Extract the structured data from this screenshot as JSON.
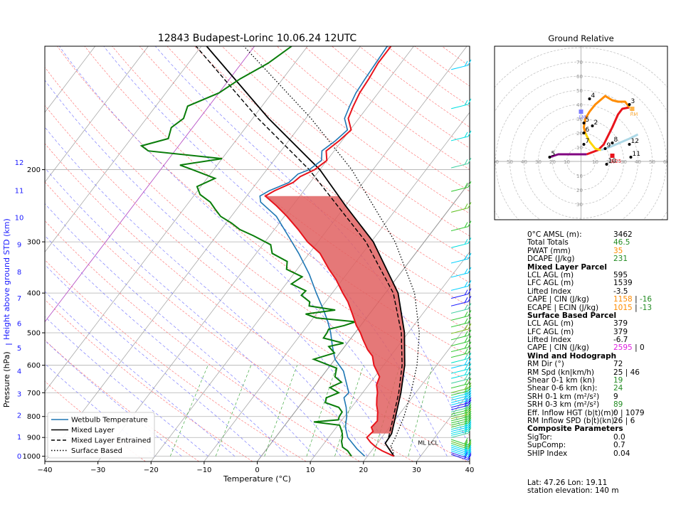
{
  "title": "12843 Budapest-Lorinc 10.06.24 12UTC",
  "chart_data": {
    "type": "skewt",
    "title": "12843 Budapest-Lorinc 10.06.24 12UTC",
    "xlabel": "Temperature (°C)",
    "ylabel": "Pressure (hPa)",
    "y2label": "Height above ground STD (km)",
    "xlim": [
      -40,
      40
    ],
    "ylim_hpa": [
      1030,
      100
    ],
    "x_ticks": [
      "−40",
      "−30",
      "−20",
      "−10",
      "0",
      "10",
      "20",
      "30",
      "40"
    ],
    "p_ticks": [
      {
        "p": 1000,
        "label": "1000"
      },
      {
        "p": 900,
        "label": "900"
      },
      {
        "p": 800,
        "label": "800"
      },
      {
        "p": 700,
        "label": "700"
      },
      {
        "p": 600,
        "label": "600"
      },
      {
        "p": 500,
        "label": "500"
      },
      {
        "p": 400,
        "label": "400"
      },
      {
        "p": 300,
        "label": "300"
      },
      {
        "p": 200,
        "label": "200"
      }
    ],
    "km_ticks": [
      {
        "p": 1000,
        "label": "0"
      },
      {
        "p": 898,
        "label": "1"
      },
      {
        "p": 795,
        "label": "2"
      },
      {
        "p": 705,
        "label": "3"
      },
      {
        "p": 620,
        "label": "4"
      },
      {
        "p": 545,
        "label": "5"
      },
      {
        "p": 475,
        "label": "6"
      },
      {
        "p": 412,
        "label": "7"
      },
      {
        "p": 355,
        "label": "8"
      },
      {
        "p": 305,
        "label": "9"
      },
      {
        "p": 262,
        "label": "10"
      },
      {
        "p": 225,
        "label": "11"
      },
      {
        "p": 192,
        "label": "12"
      }
    ],
    "temperature": [
      [
        1000,
        25
      ],
      [
        990,
        24
      ],
      [
        970,
        22
      ],
      [
        950,
        20.3
      ],
      [
        925,
        18.6
      ],
      [
        900,
        17.2
      ],
      [
        870,
        17.5
      ],
      [
        850,
        16.6
      ],
      [
        820,
        16.8
      ],
      [
        800,
        16.2
      ],
      [
        780,
        15.6
      ],
      [
        750,
        14.4
      ],
      [
        720,
        13.4
      ],
      [
        700,
        12.8
      ],
      [
        670,
        11.5
      ],
      [
        640,
        10.9
      ],
      [
        600,
        8.2
      ],
      [
        570,
        6.6
      ],
      [
        550,
        4.8
      ],
      [
        520,
        2.5
      ],
      [
        500,
        1
      ],
      [
        480,
        -0.8
      ],
      [
        450,
        -3.2
      ],
      [
        420,
        -5.8
      ],
      [
        400,
        -8
      ],
      [
        370,
        -11.3
      ],
      [
        350,
        -14
      ],
      [
        320,
        -18
      ],
      [
        300,
        -22
      ],
      [
        280,
        -25.5
      ],
      [
        260,
        -29.5
      ],
      [
        245,
        -33
      ],
      [
        232,
        -36.5
      ],
      [
        225,
        -35.5
      ],
      [
        215,
        -33.2
      ],
      [
        208,
        -32.7
      ],
      [
        200,
        -31
      ],
      [
        190,
        -30
      ],
      [
        180,
        -31.5
      ],
      [
        170,
        -30.5
      ],
      [
        160,
        -29.8
      ],
      [
        150,
        -32
      ],
      [
        140,
        -32.8
      ],
      [
        130,
        -33.5
      ],
      [
        120,
        -33.8
      ],
      [
        110,
        -34.3
      ],
      [
        100,
        -34.3
      ]
    ],
    "dewpoint": [
      [
        1000,
        17
      ],
      [
        990,
        16.5
      ],
      [
        970,
        15.5
      ],
      [
        950,
        14
      ],
      [
        920,
        13
      ],
      [
        900,
        12.6
      ],
      [
        880,
        12
      ],
      [
        860,
        11.2
      ],
      [
        840,
        10.3
      ],
      [
        825,
        5
      ],
      [
        815,
        9.3
      ],
      [
        800,
        9
      ],
      [
        780,
        8.9
      ],
      [
        760,
        7.6
      ],
      [
        740,
        4.4
      ],
      [
        720,
        3.9
      ],
      [
        700,
        5.5
      ],
      [
        680,
        3.1
      ],
      [
        660,
        4.5
      ],
      [
        640,
        2.5
      ],
      [
        610,
        1.6
      ],
      [
        580,
        -4
      ],
      [
        560,
        -1
      ],
      [
        540,
        -3
      ],
      [
        530,
        -0.7
      ],
      [
        515,
        -5.2
      ],
      [
        500,
        -5.3
      ],
      [
        490,
        -5.5
      ],
      [
        480,
        -3.1
      ],
      [
        470,
        -1.5
      ],
      [
        460,
        -9.4
      ],
      [
        450,
        -12
      ],
      [
        440,
        -7
      ],
      [
        430,
        -12.5
      ],
      [
        420,
        -13
      ],
      [
        405,
        -15.5
      ],
      [
        395,
        -15.3
      ],
      [
        380,
        -19
      ],
      [
        365,
        -18
      ],
      [
        350,
        -22
      ],
      [
        335,
        -23
      ],
      [
        320,
        -27
      ],
      [
        305,
        -28.5
      ],
      [
        290,
        -33
      ],
      [
        280,
        -36.5
      ],
      [
        270,
        -39
      ],
      [
        260,
        -42
      ],
      [
        250,
        -44
      ],
      [
        240,
        -46
      ],
      [
        230,
        -49
      ],
      [
        220,
        -50.7
      ],
      [
        210,
        -48.5
      ],
      [
        200,
        -54
      ],
      [
        195,
        -57
      ],
      [
        188,
        -50
      ],
      [
        180,
        -65
      ],
      [
        175,
        -67
      ],
      [
        168,
        -63
      ],
      [
        158,
        -64
      ],
      [
        150,
        -63
      ],
      [
        140,
        -64
      ],
      [
        130,
        -60
      ],
      [
        120,
        -58
      ],
      [
        110,
        -55
      ],
      [
        100,
        -53
      ]
    ],
    "wetbulb": [
      [
        1000,
        19.5
      ],
      [
        960,
        17
      ],
      [
        900,
        13.6
      ],
      [
        850,
        11.7
      ],
      [
        800,
        10.4
      ],
      [
        760,
        9
      ],
      [
        720,
        7.2
      ],
      [
        700,
        7.4
      ],
      [
        660,
        5.4
      ],
      [
        620,
        3.3
      ],
      [
        580,
        0
      ],
      [
        540,
        -2.3
      ],
      [
        500,
        -4.6
      ],
      [
        470,
        -6.7
      ],
      [
        440,
        -9.2
      ],
      [
        400,
        -13
      ],
      [
        360,
        -17
      ],
      [
        320,
        -22
      ],
      [
        290,
        -26.5
      ],
      [
        260,
        -31.5
      ],
      [
        240,
        -36.5
      ],
      [
        232,
        -37.5
      ],
      [
        225,
        -36.5
      ],
      [
        215,
        -34
      ],
      [
        205,
        -33.5
      ],
      [
        200,
        -32
      ],
      [
        190,
        -31
      ],
      [
        180,
        -32.3
      ],
      [
        170,
        -31.2
      ],
      [
        160,
        -30.5
      ],
      [
        150,
        -32.7
      ],
      [
        140,
        -33.5
      ],
      [
        130,
        -34.2
      ],
      [
        120,
        -34.5
      ],
      [
        100,
        -35
      ]
    ],
    "mixed_layer_parcel": [
      [
        1000,
        25
      ],
      [
        930,
        21.5
      ],
      [
        900,
        21.4
      ],
      [
        880,
        21.3
      ],
      [
        800,
        19.6
      ],
      [
        700,
        17.2
      ],
      [
        600,
        14
      ],
      [
        500,
        9.3
      ],
      [
        400,
        2.4
      ],
      [
        300,
        -9.6
      ],
      [
        245,
        -20
      ],
      [
        200,
        -30
      ],
      [
        150,
        -47
      ],
      [
        100,
        -69
      ]
    ],
    "mixed_layer_entrained": [
      [
        900,
        21.3
      ],
      [
        800,
        19.2
      ],
      [
        700,
        16.8
      ],
      [
        600,
        13.5
      ],
      [
        500,
        8.7
      ],
      [
        400,
        1.5
      ],
      [
        300,
        -11
      ],
      [
        245,
        -21.5
      ],
      [
        200,
        -32
      ],
      [
        150,
        -49
      ],
      [
        100,
        -71
      ]
    ],
    "surface_based": [
      [
        1000,
        25
      ],
      [
        955,
        23.5
      ],
      [
        950,
        23
      ],
      [
        900,
        22.6
      ],
      [
        800,
        21.2
      ],
      [
        700,
        19.1
      ],
      [
        600,
        16.3
      ],
      [
        500,
        12.1
      ],
      [
        400,
        5.5
      ],
      [
        300,
        -5.5
      ],
      [
        200,
        -24
      ],
      [
        150,
        -39
      ],
      [
        100,
        -62
      ]
    ],
    "legend": [
      {
        "label": "Wetbulb Temperature",
        "style": "solid",
        "color": "#1f77b4"
      },
      {
        "label": "Mixed Layer",
        "style": "solid",
        "color": "#000000"
      },
      {
        "label": "Mixed Layer Entrained",
        "style": "dashed",
        "color": "#000000"
      },
      {
        "label": "Surface Based",
        "style": "dotted",
        "color": "#000000"
      }
    ],
    "legend_position": "lower-left",
    "annotations": [
      {
        "text": "ML LCL",
        "p": 945,
        "t": 27
      }
    ],
    "cape_shading_color": "#e06060",
    "hodograph": {
      "title": "Ground Relative",
      "range_kt": [
        -80,
        80
      ],
      "ring_labels": [
        "10",
        "20",
        "30",
        "40",
        "50",
        "60",
        "70"
      ],
      "axis_labels_x_left": [
        "70",
        "60",
        "50",
        "40",
        "30",
        "20",
        "10"
      ],
      "axis_labels_x_right": [
        "10",
        "20",
        "30",
        "40",
        "50",
        "60",
        "70"
      ],
      "axis_labels_y_up": [
        "10",
        "20",
        "30",
        "40",
        "50",
        "60",
        "70"
      ],
      "axis_labels_y_down": [
        "10",
        "20",
        "30"
      ],
      "segments": [
        {
          "color": "#800080",
          "points": [
            [
              -22,
              3
            ],
            [
              -16,
              5
            ],
            [
              -10,
              5
            ],
            [
              -2,
              5
            ],
            [
              4,
              5
            ]
          ]
        },
        {
          "color": "#e8131b",
          "points": [
            [
              4,
              5
            ],
            [
              12,
              8
            ],
            [
              16,
              12
            ],
            [
              22,
              24
            ],
            [
              26,
              33
            ],
            [
              29,
              37
            ],
            [
              34,
              38
            ]
          ]
        },
        {
          "color": "#ff8c00",
          "points": [
            [
              34,
              38
            ],
            [
              31,
              42
            ],
            [
              26,
              42
            ],
            [
              22,
              43
            ],
            [
              17,
              46
            ],
            [
              10,
              40
            ],
            [
              6,
              35
            ],
            [
              3,
              30
            ],
            [
              2,
              24
            ],
            [
              3,
              20
            ]
          ]
        },
        {
          "color": "#ffd700",
          "points": [
            [
              3,
              20
            ],
            [
              6,
              14
            ],
            [
              10,
              9
            ],
            [
              14,
              8
            ]
          ]
        },
        {
          "color": "#add8e6",
          "points": [
            [
              14,
              8
            ],
            [
              20,
              10
            ],
            [
              27,
              13
            ],
            [
              34,
              16
            ],
            [
              38,
              18
            ],
            [
              40,
              19
            ]
          ]
        }
      ],
      "height_labels": [
        {
          "text": "5",
          "x": -22,
          "y": 3
        },
        {
          "text": "4",
          "x": 6,
          "y": 44
        },
        {
          "text": "3",
          "x": 34,
          "y": 40
        },
        {
          "text": "2",
          "x": 8,
          "y": 25
        },
        {
          "text": "5",
          "x": 2,
          "y": 27
        },
        {
          "text": "6",
          "x": 2,
          "y": 20
        },
        {
          "text": "7",
          "x": 2,
          "y": 12
        },
        {
          "text": "8",
          "x": 22,
          "y": 13
        },
        {
          "text": "9",
          "x": 17,
          "y": 9
        },
        {
          "text": "10",
          "x": 18,
          "y": -2
        },
        {
          "text": "11",
          "x": 35,
          "y": 3
        },
        {
          "text": "12",
          "x": 34,
          "y": 12
        }
      ],
      "markers": [
        {
          "label": "LM",
          "x": 0,
          "y": 35,
          "color": "#7b7bff"
        },
        {
          "label": "RM",
          "x": 36,
          "y": 37,
          "color": "#ffb347"
        },
        {
          "label": "3/25",
          "x": 22,
          "y": 4,
          "color": "#e8131b"
        }
      ]
    }
  },
  "stats": {
    "general": [
      {
        "key": "0°C AMSL (m):",
        "value": "3462",
        "color": "#000000"
      },
      {
        "key": "Total Totals",
        "value": "46.5",
        "color": "#228b22"
      },
      {
        "key": "PWAT (mm)",
        "value": "35",
        "color": "#ff8c00"
      },
      {
        "key": "DCAPE (J/kg)",
        "value": "231",
        "color": "#228b22"
      }
    ],
    "ml_title": "Mixed Layer Parcel",
    "ml": [
      {
        "key": "LCL AGL (m)",
        "value": "595"
      },
      {
        "key": "LFC AGL (m)",
        "value": "1539"
      },
      {
        "key": "Lifted Index",
        "value": "-3.5"
      }
    ],
    "ml_cape": {
      "key": "CAPE | CIN (J/kg)",
      "a": "1158",
      "a_color": "#ff8c00",
      "b": "-16",
      "b_color": "#228b22"
    },
    "ml_ecape": {
      "key": "ECAPE | ECIN (J/kg)",
      "a": "1015",
      "a_color": "#ff8c00",
      "b": "-13",
      "b_color": "#228b22"
    },
    "sb_title": "Surface Based Parcel",
    "sb": [
      {
        "key": "LCL AGL (m)",
        "value": "379"
      },
      {
        "key": "LFC AGL (m)",
        "value": "379"
      },
      {
        "key": "Lifted Index",
        "value": "-6.7"
      }
    ],
    "sb_cape": {
      "key": "CAPE | CIN (J/kg)",
      "a": "2595",
      "a_color": "#e020e0",
      "b": "0",
      "b_color": "#000000"
    },
    "wind_title": "Wind and Hodograph",
    "wind": [
      {
        "key": "RM Dir (°)",
        "value": "72",
        "color": "#000000"
      },
      {
        "key": "RM Spd (kn|km/h)",
        "value": "25 | 46",
        "color": "#000000"
      },
      {
        "key": "Shear 0-1 km (kn)",
        "value": "19",
        "color": "#228b22"
      },
      {
        "key": "Shear 0-6 km (kn):",
        "value": "24",
        "color": "#228b22"
      },
      {
        "key": "SRH 0-1 km (m²/s²)",
        "value": "9",
        "color": "#000000"
      },
      {
        "key": "SRH 0-3 km (m²/s²)",
        "value": "89",
        "color": "#228b22"
      },
      {
        "key": "Eff. Inflow HGT (b|t)(m):",
        "value": "0 | 1079",
        "color": "#000000"
      },
      {
        "key": "RM Inflow SPD (b|t)(kn):",
        "value": "26 | 6",
        "color": "#000000"
      }
    ],
    "comp_title": "Composite Parameters",
    "comp": [
      {
        "key": "SigTor:",
        "value": "0.0"
      },
      {
        "key": "SupComp:",
        "value": "0.7"
      },
      {
        "key": "SHIP Index",
        "value": "0.04"
      }
    ],
    "lat": "Lat: 47.26  Lon: 19.11",
    "elev": "station elevation: 140 m"
  }
}
